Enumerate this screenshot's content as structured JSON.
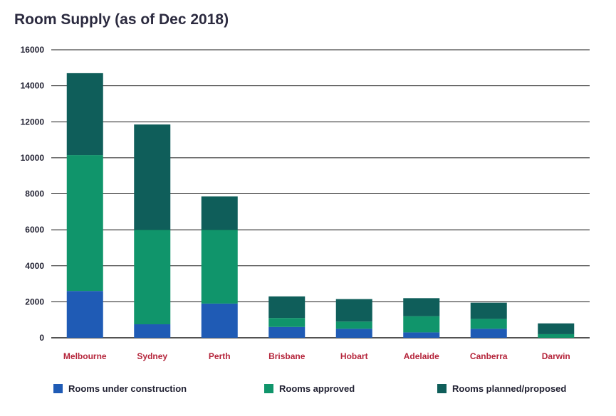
{
  "chart_data": {
    "type": "bar",
    "stacked": true,
    "title": "Room Supply (as of Dec 2018)",
    "xlabel": "",
    "ylabel": "",
    "ylim": [
      0,
      16000
    ],
    "y_ticks": [
      0,
      2000,
      4000,
      6000,
      8000,
      10000,
      12000,
      14000,
      16000
    ],
    "grid": true,
    "legend_position": "bottom",
    "categories": [
      "Melbourne",
      "Sydney",
      "Perth",
      "Brisbane",
      "Hobart",
      "Adelaide",
      "Canberra",
      "Darwin"
    ],
    "series": [
      {
        "name": "Rooms under construction",
        "color": "#1f5bb5",
        "values": [
          2600,
          750,
          1900,
          600,
          500,
          300,
          500,
          0
        ]
      },
      {
        "name": "Rooms approved",
        "color": "#10956b",
        "values": [
          7550,
          5250,
          4100,
          500,
          400,
          900,
          550,
          200
        ]
      },
      {
        "name": "Rooms planned/proposed",
        "color": "#0f5e5a",
        "values": [
          4550,
          5850,
          1850,
          1200,
          1250,
          1000,
          900,
          600
        ]
      }
    ]
  }
}
